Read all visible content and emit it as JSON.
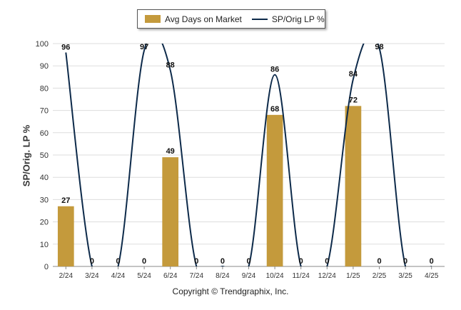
{
  "chart_data": {
    "type": "bar",
    "categories": [
      "2/24",
      "3/24",
      "4/24",
      "5/24",
      "6/24",
      "7/24",
      "8/24",
      "9/24",
      "10/24",
      "11/24",
      "12/24",
      "1/25",
      "2/25",
      "3/25",
      "4/25"
    ],
    "series": [
      {
        "name": "Avg Days on Market",
        "type": "bar",
        "values": [
          27,
          0,
          0,
          0,
          49,
          0,
          0,
          0,
          68,
          0,
          0,
          72,
          0,
          0,
          0
        ],
        "color": "#c49a3c"
      },
      {
        "name": "SP/Orig LP %",
        "type": "line",
        "values": [
          96,
          0,
          0,
          97,
          88,
          0,
          0,
          0,
          86,
          0,
          0,
          84,
          98,
          0,
          0
        ],
        "color": "#0d2a4a"
      }
    ],
    "ylabel": "SP/Orig. LP %",
    "yticks": [
      0,
      10,
      20,
      30,
      40,
      50,
      60,
      70,
      80,
      90,
      100
    ],
    "ylim": [
      0,
      100
    ],
    "grid": true,
    "legend_position": "top-center"
  },
  "footer": "Copyright © Trendgraphix, Inc."
}
